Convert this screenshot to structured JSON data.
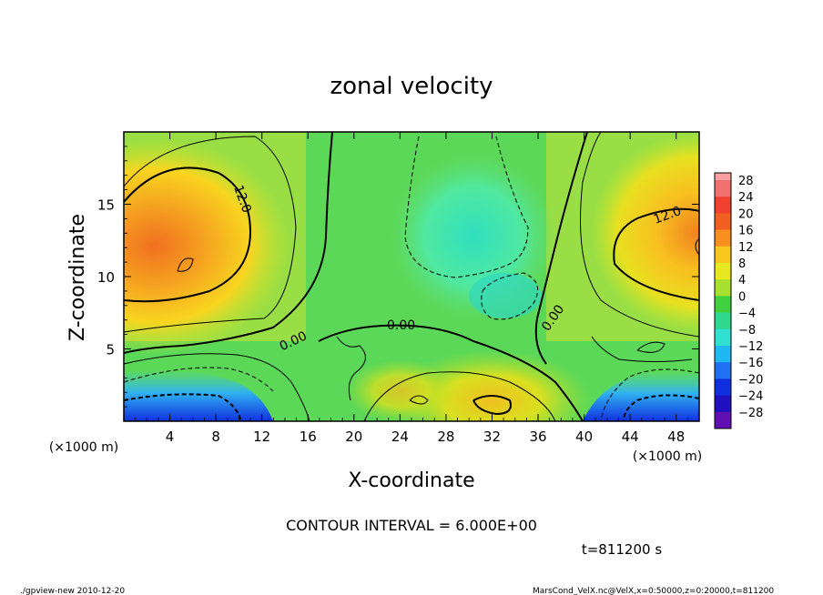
{
  "chart_data": {
    "type": "heatmap",
    "title": "zonal velocity",
    "xlabel": "X-coordinate",
    "ylabel": "Z-coordinate",
    "x_unit_note": "(×1000 m)",
    "y_unit_note": "(×1000 m)",
    "xlim": [
      0,
      50
    ],
    "ylim": [
      0,
      20
    ],
    "x_ticks": [
      "4",
      "8",
      "12",
      "16",
      "20",
      "24",
      "28",
      "32",
      "36",
      "40",
      "44",
      "48"
    ],
    "x_tick_values": [
      4,
      8,
      12,
      16,
      20,
      24,
      28,
      32,
      36,
      40,
      44,
      48
    ],
    "y_ticks": [
      "5",
      "10",
      "15"
    ],
    "y_tick_values": [
      5,
      10,
      15
    ],
    "colorbar_labels": [
      "28",
      "24",
      "20",
      "16",
      "12",
      "8",
      "4",
      "0",
      "−4",
      "−8",
      "−12",
      "−16",
      "−20",
      "−24",
      "−28"
    ],
    "colorbar_values": [
      28,
      24,
      20,
      16,
      12,
      8,
      4,
      0,
      -4,
      -8,
      -12,
      -16,
      -20,
      -24,
      -28
    ],
    "contour_labels": [
      "12.0",
      "12.0",
      "0.00",
      "0.00",
      "0.00"
    ],
    "contour_interval_text": "CONTOUR INTERVAL = 6.000E+00",
    "time_text": "t=811200 s",
    "footer_left": "./gpview-new  2010-12-20",
    "footer_right": "MarsCond_VelX.nc@VelX,x=0:50000,z=0:20000,t=811200"
  }
}
